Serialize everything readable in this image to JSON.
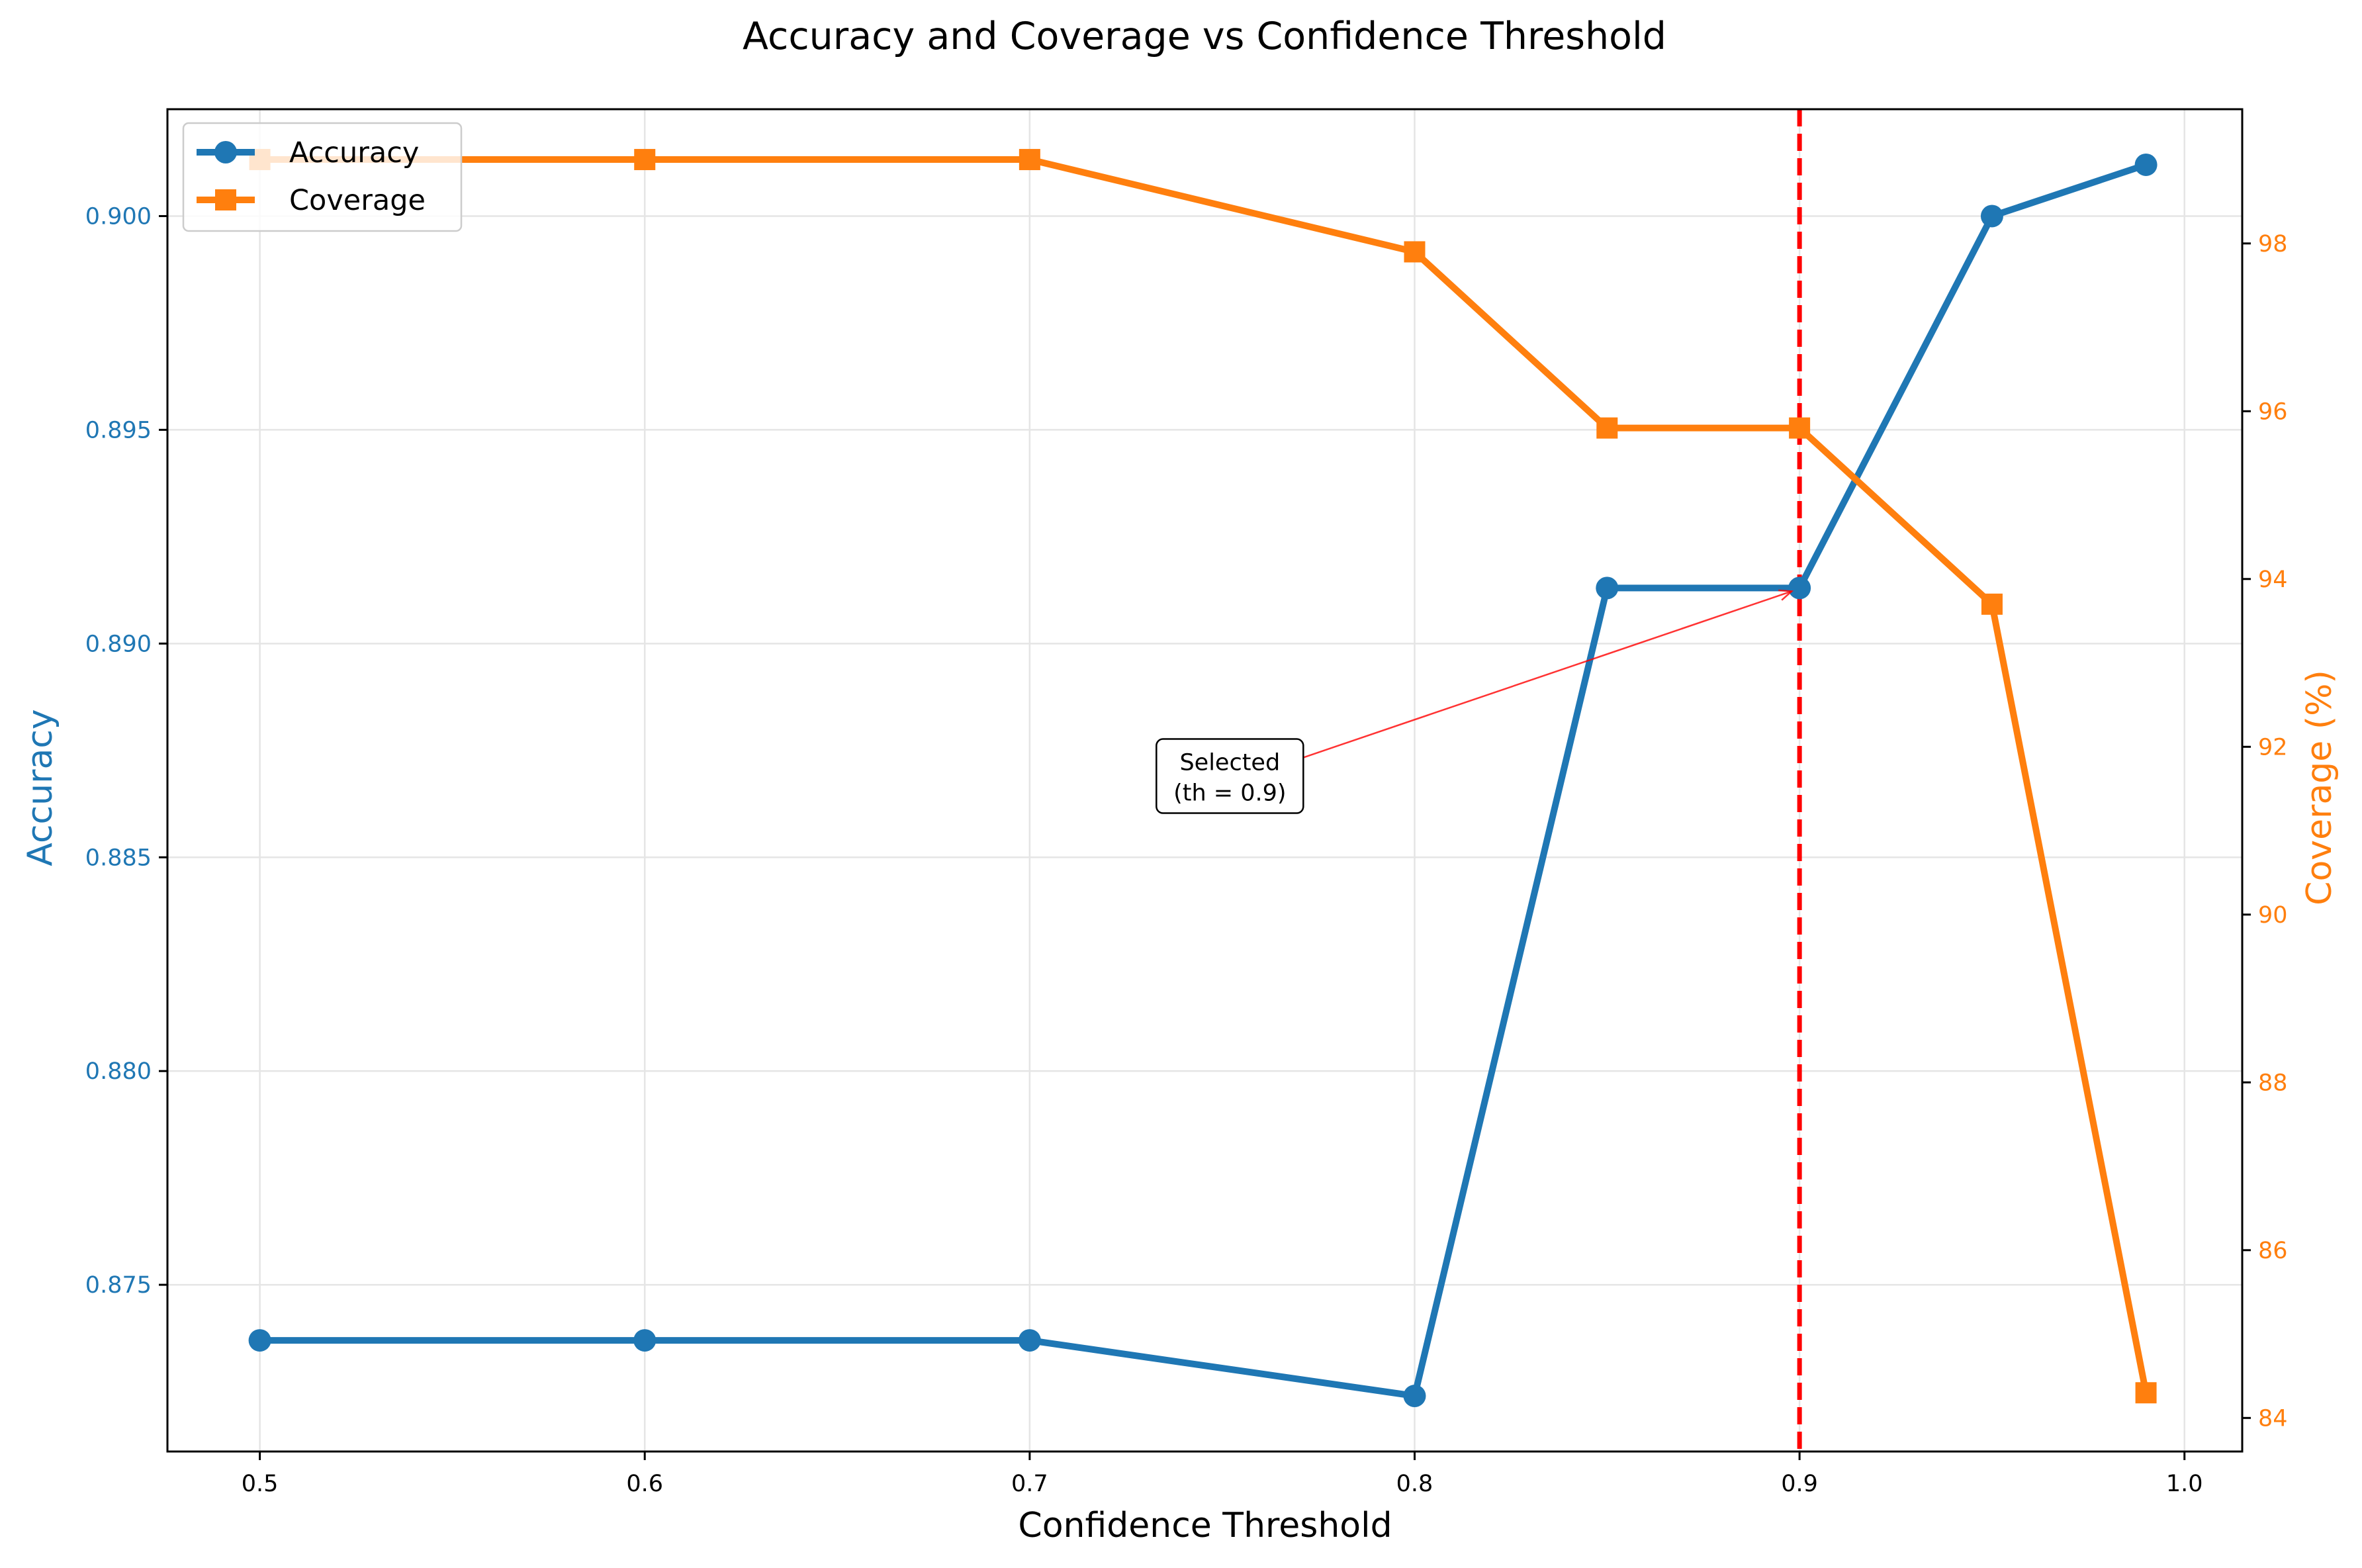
{
  "chart_data": {
    "type": "line",
    "title": "Accuracy and Coverage vs Confidence Threshold",
    "xlabel": "Confidence Threshold",
    "ylabel": "Accuracy",
    "y2label": "Coverage (%)",
    "x": [
      0.5,
      0.6,
      0.7,
      0.8,
      0.85,
      0.9,
      0.95,
      0.99
    ],
    "xlim": [
      0.476,
      1.015
    ],
    "ylim": [
      0.8711,
      0.9025
    ],
    "y2lim": [
      83.6,
      99.6
    ],
    "xticks": [
      "0.5",
      "0.6",
      "0.7",
      "0.8",
      "0.9",
      "1.0"
    ],
    "yticks": [
      "0.875",
      "0.880",
      "0.885",
      "0.890",
      "0.895",
      "0.900"
    ],
    "y2ticks": [
      "84",
      "86",
      "88",
      "90",
      "92",
      "94",
      "96",
      "98"
    ],
    "grid": true,
    "legend_position": "upper-left",
    "series": [
      {
        "name": "Accuracy",
        "axis": "left",
        "color": "#1f77b4",
        "marker": "circle",
        "values": [
          0.8737,
          0.8737,
          0.8737,
          0.8724,
          0.8913,
          0.8913,
          0.9,
          0.9012
        ]
      },
      {
        "name": "Coverage",
        "axis": "right",
        "color": "#ff7f0e",
        "marker": "square",
        "values": [
          99.0,
          99.0,
          99.0,
          97.9,
          95.8,
          95.8,
          93.7,
          84.3
        ]
      }
    ],
    "threshold_line": {
      "x": 0.9,
      "color": "#ff0000",
      "style": "dashed"
    },
    "annotation": {
      "text_line1": "Selected",
      "text_line2": "(th = 0.9)",
      "target_x": 0.9,
      "target_accuracy": 0.8913,
      "text_x": 0.752,
      "text_accuracy": 0.8869,
      "arrow_color": "#ff0000"
    }
  }
}
